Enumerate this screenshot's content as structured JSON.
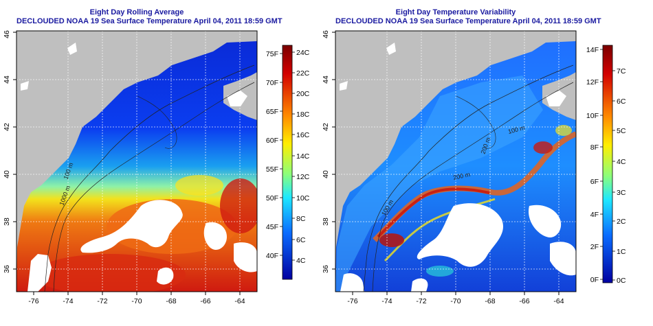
{
  "left_panel": {
    "title": "Eight Day Rolling Average",
    "subtitle": "DECLOUDED NOAA 19 Sea Surface Temperature April 04, 2011 18:59 GMT",
    "colorbar": {
      "f_labels": [
        "75F",
        "70F",
        "65F",
        "60F",
        "55F",
        "50F",
        "45F",
        "40F"
      ],
      "c_labels": [
        "24C",
        "22C",
        "20C",
        "18C",
        "16C",
        "14C",
        "12C",
        "10C",
        "8C",
        "6C",
        "4C"
      ]
    }
  },
  "right_panel": {
    "title": "Eight Day Temperature Variability",
    "subtitle": "DECLOUDED NOAA 19 Sea Surface Temperature April 04, 2011 18:59 GMT",
    "colorbar": {
      "f_labels": [
        "14F",
        "12F",
        "10F",
        "8F",
        "6F",
        "4F",
        "2F",
        "0F"
      ],
      "c_labels": [
        "7C",
        "6C",
        "5C",
        "4C",
        "3C",
        "2C",
        "1C",
        "0C"
      ]
    },
    "contour_labels": [
      "100 m",
      "200 m",
      "100 m",
      "200 m"
    ]
  },
  "left_contour_labels": [
    "1000 m",
    "100 m"
  ],
  "x_ticks": [
    "-76",
    "-74",
    "-72",
    "-70",
    "-68",
    "-66",
    "-64"
  ],
  "y_ticks": [
    "36",
    "38",
    "40",
    "42",
    "44",
    "46"
  ],
  "colors": {
    "land": "#bfbfbf",
    "title": "#1a1aa0",
    "grid": "#ffffff"
  }
}
